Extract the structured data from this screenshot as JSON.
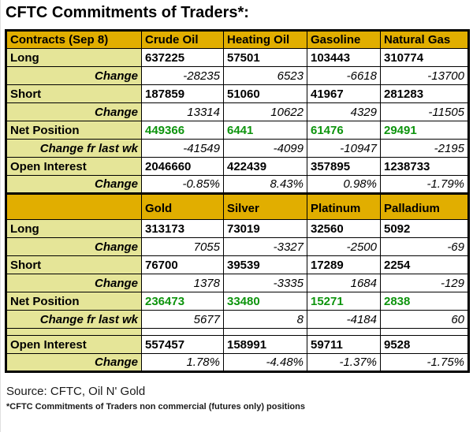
{
  "title": "CFTC Commitments of Traders*:",
  "footer": {
    "source": "Source: CFTC, Oil N' Gold",
    "footnote": "*CFTC Commitments of Traders non commercial (futures only) positions"
  },
  "colors": {
    "header_gold": "#e1ae00",
    "label_pale": "#e5e598",
    "net_green": "#0d940d",
    "border": "#000000",
    "background": "#ffffff"
  },
  "chart_data": {
    "type": "table",
    "title": "CFTC Commitments of Traders*:",
    "sections": [
      {
        "header": [
          "Contracts (Sep 8)",
          "Crude Oil",
          "Heating Oil",
          "Gasoline",
          "Natural Gas"
        ],
        "rows": [
          {
            "label": "Long",
            "style": "main",
            "values": [
              "637225",
              "57501",
              "103443",
              "310774"
            ]
          },
          {
            "label": "Change",
            "style": "change",
            "values": [
              "-28235",
              "6523",
              "-6618",
              "-13700"
            ]
          },
          {
            "label": "Short",
            "style": "main",
            "values": [
              "187859",
              "51060",
              "41967",
              "281283"
            ]
          },
          {
            "label": "Change",
            "style": "change",
            "values": [
              "13314",
              "10622",
              "4329",
              "-11505"
            ]
          },
          {
            "label": "Net Position",
            "style": "net",
            "values": [
              "449366",
              "6441",
              "61476",
              "29491"
            ]
          },
          {
            "label": "Change fr last wk",
            "style": "change",
            "values": [
              "-41549",
              "-4099",
              "-10947",
              "-2195"
            ]
          },
          {
            "label": "Open Interest",
            "style": "main",
            "values": [
              "2046660",
              "422439",
              "357895",
              "1238733"
            ]
          },
          {
            "label": "Change",
            "style": "change",
            "values": [
              "-0.85%",
              "8.43%",
              "0.98%",
              "-1.79%"
            ]
          }
        ]
      },
      {
        "header": [
          "",
          "Gold",
          "Silver",
          "Platinum",
          "Palladium"
        ],
        "rows": [
          {
            "label": "Long",
            "style": "main",
            "values": [
              "313173",
              "73019",
              "32560",
              "5092"
            ]
          },
          {
            "label": "Change",
            "style": "change",
            "values": [
              "7055",
              "-3327",
              "-2500",
              "-69"
            ]
          },
          {
            "label": "Short",
            "style": "main",
            "values": [
              "76700",
              "39539",
              "17289",
              "2254"
            ]
          },
          {
            "label": "Change",
            "style": "change",
            "values": [
              "1378",
              "-3335",
              "1684",
              "-129"
            ]
          },
          {
            "label": "Net Position",
            "style": "net",
            "values": [
              "236473",
              "33480",
              "15271",
              "2838"
            ]
          },
          {
            "label": "Change fr last wk",
            "style": "change",
            "values": [
              "5677",
              "8",
              "-4184",
              "60"
            ]
          },
          {
            "label": "",
            "style": "spacer",
            "values": [
              "",
              "",
              "",
              ""
            ]
          },
          {
            "label": "Open Interest",
            "style": "main",
            "values": [
              "557457",
              "158991",
              "59711",
              "9528"
            ]
          },
          {
            "label": "Change",
            "style": "change",
            "values": [
              "1.78%",
              "-4.48%",
              "-1.37%",
              "-1.75%"
            ]
          }
        ]
      }
    ]
  }
}
